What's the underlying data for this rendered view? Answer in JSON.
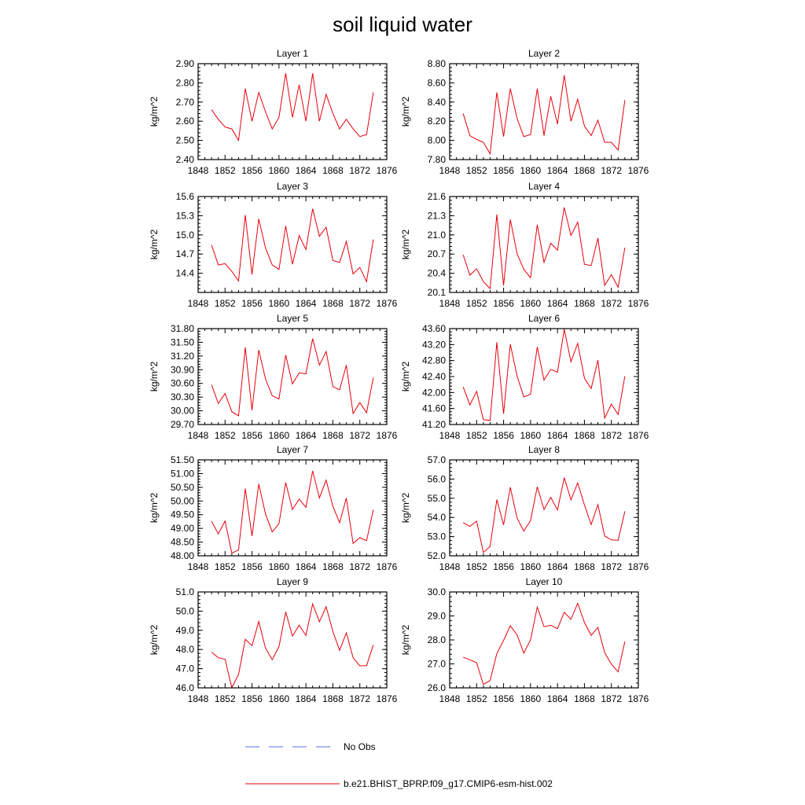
{
  "figure_title": "soil liquid water",
  "colors": {
    "model_line": "#e8000b",
    "obs_line": "#5b6ee1",
    "axis": "#000000"
  },
  "legend": {
    "entries": [
      {
        "label": "No Obs",
        "style": "dashed",
        "color": "#5b6ee1"
      },
      {
        "label": "b.e21.BHIST_BPRP.f09_g17.CMIP6-esm-hist.002",
        "style": "solid",
        "color": "#e8000b"
      }
    ]
  },
  "chart_data": [
    {
      "type": "line",
      "title": "Layer 1",
      "ylabel": "kg/m^2",
      "xlim": [
        1848,
        1876
      ],
      "xticks": [
        1848,
        1852,
        1856,
        1860,
        1864,
        1868,
        1872,
        1876
      ],
      "ylim": [
        2.4,
        2.9
      ],
      "yticks": [
        "2.40",
        "2.50",
        "2.60",
        "2.70",
        "2.80",
        "2.90"
      ],
      "series": [
        {
          "x": [
            1850,
            1851,
            1852,
            1853,
            1854,
            1855,
            1856,
            1857,
            1858,
            1859,
            1860,
            1861,
            1862,
            1863,
            1864,
            1865,
            1866,
            1867,
            1868,
            1869,
            1870,
            1871,
            1872,
            1873,
            1874
          ],
          "values": [
            2.66,
            2.61,
            2.57,
            2.56,
            2.5,
            2.77,
            2.6,
            2.75,
            2.65,
            2.56,
            2.62,
            2.85,
            2.62,
            2.79,
            2.6,
            2.85,
            2.6,
            2.74,
            2.64,
            2.56,
            2.61,
            2.56,
            2.52,
            2.53,
            2.75
          ]
        }
      ]
    },
    {
      "type": "line",
      "title": "Layer 2",
      "ylabel": "kg/m^2",
      "xlim": [
        1848,
        1876
      ],
      "xticks": [
        1848,
        1852,
        1856,
        1860,
        1864,
        1868,
        1872,
        1876
      ],
      "ylim": [
        7.8,
        8.8
      ],
      "yticks": [
        "7.80",
        "8.00",
        "8.20",
        "8.40",
        "8.60",
        "8.80"
      ],
      "series": [
        {
          "x": [
            1850,
            1851,
            1852,
            1853,
            1854,
            1855,
            1856,
            1857,
            1858,
            1859,
            1860,
            1861,
            1862,
            1863,
            1864,
            1865,
            1866,
            1867,
            1868,
            1869,
            1870,
            1871,
            1872,
            1873,
            1874
          ],
          "values": [
            8.28,
            8.05,
            8.01,
            7.98,
            7.86,
            8.5,
            8.04,
            8.54,
            8.23,
            8.04,
            8.06,
            8.54,
            8.05,
            8.46,
            8.17,
            8.68,
            8.2,
            8.43,
            8.15,
            8.05,
            8.21,
            7.98,
            7.98,
            7.9,
            8.42
          ]
        }
      ]
    },
    {
      "type": "line",
      "title": "Layer 3",
      "ylabel": "kg/m^2",
      "xlim": [
        1848,
        1876
      ],
      "xticks": [
        1848,
        1852,
        1856,
        1860,
        1864,
        1868,
        1872,
        1876
      ],
      "ylim": [
        14.1,
        15.6
      ],
      "yticks": [
        "14.4",
        "14.7",
        "15.0",
        "15.3",
        "15.6"
      ],
      "series": [
        {
          "x": [
            1850,
            1851,
            1852,
            1853,
            1854,
            1855,
            1856,
            1857,
            1858,
            1859,
            1860,
            1861,
            1862,
            1863,
            1864,
            1865,
            1866,
            1867,
            1868,
            1869,
            1870,
            1871,
            1872,
            1873,
            1874
          ],
          "values": [
            14.84,
            14.53,
            14.55,
            14.43,
            14.28,
            15.31,
            14.38,
            15.25,
            14.8,
            14.53,
            14.46,
            15.14,
            14.54,
            14.99,
            14.77,
            15.41,
            14.98,
            15.12,
            14.6,
            14.57,
            14.9,
            14.39,
            14.49,
            14.27,
            14.93
          ]
        }
      ]
    },
    {
      "type": "line",
      "title": "Layer 4",
      "ylabel": "kg/m^2",
      "xlim": [
        1848,
        1876
      ],
      "xticks": [
        1848,
        1852,
        1856,
        1860,
        1864,
        1868,
        1872,
        1876
      ],
      "ylim": [
        20.1,
        21.6
      ],
      "yticks": [
        "20.1",
        "20.4",
        "20.7",
        "21.0",
        "21.3",
        "21.6"
      ],
      "series": [
        {
          "x": [
            1850,
            1851,
            1852,
            1853,
            1854,
            1855,
            1856,
            1857,
            1858,
            1859,
            1860,
            1861,
            1862,
            1863,
            1864,
            1865,
            1866,
            1867,
            1868,
            1869,
            1870,
            1871,
            1872,
            1873,
            1874
          ],
          "values": [
            20.69,
            20.37,
            20.47,
            20.27,
            20.16,
            21.32,
            20.21,
            21.24,
            20.71,
            20.46,
            20.33,
            21.16,
            20.57,
            20.87,
            20.76,
            21.43,
            20.99,
            21.2,
            20.54,
            20.52,
            20.95,
            20.21,
            20.38,
            20.18,
            20.8
          ]
        }
      ]
    },
    {
      "type": "line",
      "title": "Layer 5",
      "ylabel": "kg/m^2",
      "xlim": [
        1848,
        1876
      ],
      "xticks": [
        1848,
        1852,
        1856,
        1860,
        1864,
        1868,
        1872,
        1876
      ],
      "ylim": [
        29.7,
        31.8
      ],
      "yticks": [
        "29.70",
        "30.00",
        "30.30",
        "30.60",
        "30.90",
        "31.20",
        "31.50",
        "31.80"
      ],
      "series": [
        {
          "x": [
            1850,
            1851,
            1852,
            1853,
            1854,
            1855,
            1856,
            1857,
            1858,
            1859,
            1860,
            1861,
            1862,
            1863,
            1864,
            1865,
            1866,
            1867,
            1868,
            1869,
            1870,
            1871,
            1872,
            1873,
            1874
          ],
          "values": [
            30.57,
            30.16,
            30.38,
            29.98,
            29.89,
            31.39,
            30.01,
            31.33,
            30.7,
            30.33,
            30.26,
            31.22,
            30.59,
            30.83,
            30.81,
            31.58,
            31.0,
            31.3,
            30.53,
            30.46,
            31.0,
            29.94,
            30.18,
            29.96,
            30.73
          ]
        }
      ]
    },
    {
      "type": "line",
      "title": "Layer 6",
      "ylabel": "kg/m^2",
      "xlim": [
        1848,
        1876
      ],
      "xticks": [
        1848,
        1852,
        1856,
        1860,
        1864,
        1868,
        1872,
        1876
      ],
      "ylim": [
        41.2,
        43.6
      ],
      "yticks": [
        "41.20",
        "41.60",
        "42.00",
        "42.40",
        "42.80",
        "43.20",
        "43.60"
      ],
      "series": [
        {
          "x": [
            1850,
            1851,
            1852,
            1853,
            1854,
            1855,
            1856,
            1857,
            1858,
            1859,
            1860,
            1861,
            1862,
            1863,
            1864,
            1865,
            1866,
            1867,
            1868,
            1869,
            1870,
            1871,
            1872,
            1873,
            1874
          ],
          "values": [
            42.14,
            41.69,
            42.03,
            41.32,
            41.3,
            43.26,
            41.47,
            43.21,
            42.42,
            41.89,
            41.96,
            43.14,
            42.31,
            42.58,
            42.51,
            43.58,
            42.77,
            43.23,
            42.36,
            42.1,
            42.81,
            41.36,
            41.71,
            41.45,
            42.41
          ]
        }
      ]
    },
    {
      "type": "line",
      "title": "Layer 7",
      "ylabel": "kg/m^2",
      "xlim": [
        1848,
        1876
      ],
      "xticks": [
        1848,
        1852,
        1856,
        1860,
        1864,
        1868,
        1872,
        1876
      ],
      "ylim": [
        48.0,
        51.5
      ],
      "yticks": [
        "48.00",
        "48.50",
        "49.00",
        "49.50",
        "50.00",
        "50.50",
        "51.00",
        "51.50"
      ],
      "series": [
        {
          "x": [
            1850,
            1851,
            1852,
            1853,
            1854,
            1855,
            1856,
            1857,
            1858,
            1859,
            1860,
            1861,
            1862,
            1863,
            1864,
            1865,
            1866,
            1867,
            1868,
            1869,
            1870,
            1871,
            1872,
            1873,
            1874
          ],
          "values": [
            49.26,
            48.8,
            49.27,
            48.1,
            48.21,
            50.45,
            48.72,
            50.62,
            49.53,
            48.87,
            49.17,
            50.67,
            49.69,
            50.07,
            49.77,
            51.1,
            50.11,
            50.76,
            49.81,
            49.21,
            50.11,
            48.45,
            48.66,
            48.55,
            49.68
          ]
        }
      ]
    },
    {
      "type": "line",
      "title": "Layer 8",
      "ylabel": "kg/m^2",
      "xlim": [
        1848,
        1876
      ],
      "xticks": [
        1848,
        1852,
        1856,
        1860,
        1864,
        1868,
        1872,
        1876
      ],
      "ylim": [
        52.0,
        57.0
      ],
      "yticks": [
        "52.0",
        "53.0",
        "54.0",
        "55.0",
        "56.0",
        "57.0"
      ],
      "series": [
        {
          "x": [
            1850,
            1851,
            1852,
            1853,
            1854,
            1855,
            1856,
            1857,
            1858,
            1859,
            1860,
            1861,
            1862,
            1863,
            1864,
            1865,
            1866,
            1867,
            1868,
            1869,
            1870,
            1871,
            1872,
            1873,
            1874
          ],
          "values": [
            53.73,
            53.53,
            53.81,
            52.17,
            52.49,
            54.93,
            53.61,
            55.57,
            53.97,
            53.29,
            53.83,
            55.6,
            54.41,
            55.05,
            54.39,
            56.07,
            54.92,
            55.8,
            54.65,
            53.63,
            54.67,
            53.03,
            52.83,
            52.81,
            54.32
          ]
        }
      ]
    },
    {
      "type": "line",
      "title": "Layer 9",
      "ylabel": "kg/m^2",
      "xlim": [
        1848,
        1876
      ],
      "xticks": [
        1848,
        1852,
        1856,
        1860,
        1864,
        1868,
        1872,
        1876
      ],
      "ylim": [
        46.0,
        51.0
      ],
      "yticks": [
        "46.0",
        "47.0",
        "48.0",
        "49.0",
        "50.0",
        "51.0"
      ],
      "series": [
        {
          "x": [
            1850,
            1851,
            1852,
            1853,
            1854,
            1855,
            1856,
            1857,
            1858,
            1859,
            1860,
            1861,
            1862,
            1863,
            1864,
            1865,
            1866,
            1867,
            1868,
            1869,
            1870,
            1871,
            1872,
            1873,
            1874
          ],
          "values": [
            47.86,
            47.57,
            47.49,
            46.01,
            46.7,
            48.53,
            48.2,
            49.46,
            48.07,
            47.47,
            48.15,
            49.96,
            48.7,
            49.27,
            48.73,
            50.38,
            49.44,
            50.23,
            48.94,
            47.96,
            48.87,
            47.57,
            47.15,
            47.16,
            48.24
          ]
        }
      ]
    },
    {
      "type": "line",
      "title": "Layer 10",
      "ylabel": "kg/m^2",
      "xlim": [
        1848,
        1876
      ],
      "xticks": [
        1848,
        1852,
        1856,
        1860,
        1864,
        1868,
        1872,
        1876
      ],
      "ylim": [
        26.0,
        30.0
      ],
      "yticks": [
        "26.0",
        "27.0",
        "28.0",
        "29.0",
        "30.0"
      ],
      "series": [
        {
          "x": [
            1850,
            1851,
            1852,
            1853,
            1854,
            1855,
            1856,
            1857,
            1858,
            1859,
            1860,
            1861,
            1862,
            1863,
            1864,
            1865,
            1866,
            1867,
            1868,
            1869,
            1870,
            1871,
            1872,
            1873,
            1874
          ],
          "values": [
            27.28,
            27.17,
            27.05,
            26.14,
            26.31,
            27.43,
            27.98,
            28.59,
            28.21,
            27.45,
            28.0,
            29.37,
            28.55,
            28.61,
            28.47,
            29.15,
            28.86,
            29.53,
            28.73,
            28.19,
            28.52,
            27.47,
            26.99,
            26.67,
            27.93
          ]
        }
      ]
    }
  ]
}
